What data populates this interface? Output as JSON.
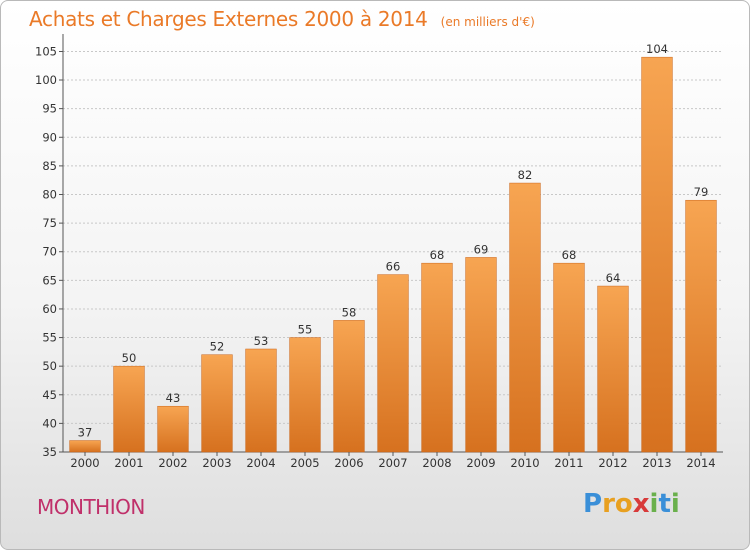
{
  "header": {
    "title": "Achats et Charges Externes 2000 à 2014",
    "unit": "(en milliers d'€)"
  },
  "footer": {
    "place": "MONTHION",
    "logo_letters": [
      "P",
      "r",
      "o",
      "x",
      "i",
      "t",
      "i"
    ],
    "logo_colors": [
      "#3a8fd8",
      "#e8a020",
      "#e8a020",
      "#d83a3a",
      "#6ab04c",
      "#3a8fd8",
      "#6ab04c"
    ]
  },
  "colors": {
    "bar_light": "#f7a552",
    "bar_dark": "#d6711f",
    "title": "#ea7a28",
    "place": "#c0306a"
  },
  "chart_data": {
    "type": "bar",
    "title": "Achats et Charges Externes 2000 à 2014",
    "subtitle": "(en milliers d'€)",
    "categories": [
      "2000",
      "2001",
      "2002",
      "2003",
      "2004",
      "2005",
      "2006",
      "2007",
      "2008",
      "2009",
      "2010",
      "2011",
      "2012",
      "2013",
      "2014"
    ],
    "values": [
      37,
      50,
      43,
      52,
      53,
      55,
      58,
      66,
      68,
      69,
      82,
      68,
      64,
      104,
      79
    ],
    "ylim": [
      35,
      107
    ],
    "yticks": [
      35,
      40,
      45,
      50,
      55,
      60,
      65,
      70,
      75,
      80,
      85,
      90,
      95,
      100,
      105
    ],
    "grid": true,
    "legend": "none"
  }
}
